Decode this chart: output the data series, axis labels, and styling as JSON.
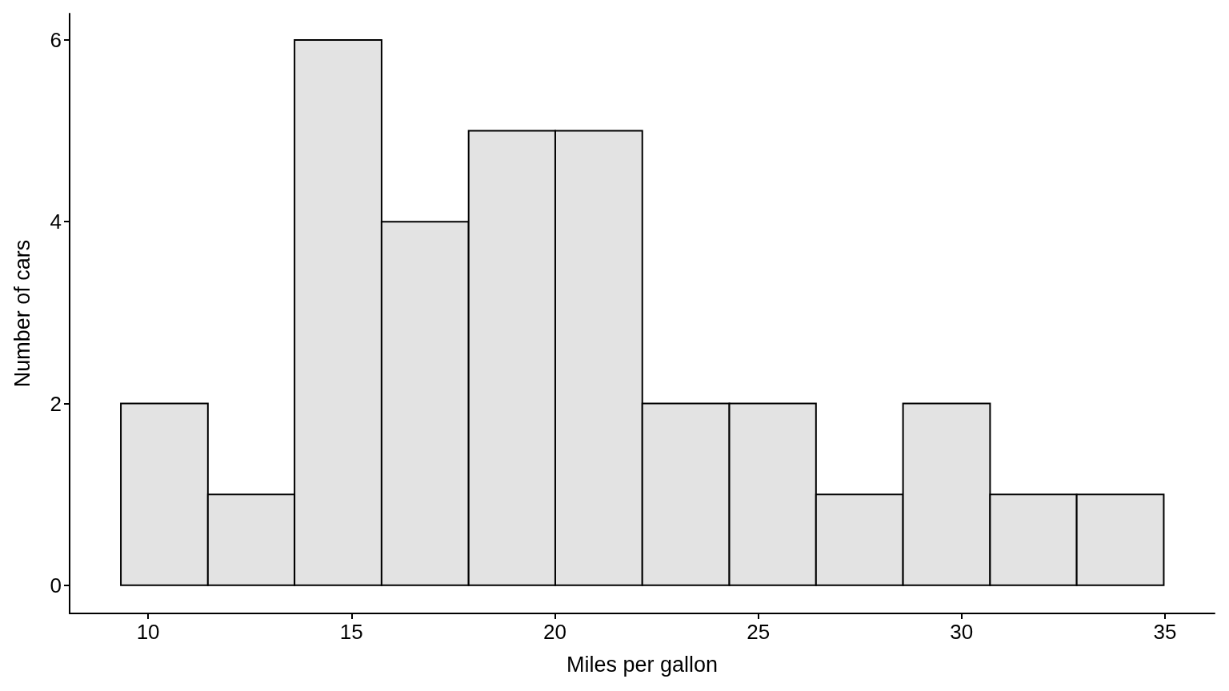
{
  "chart_data": {
    "type": "histogram",
    "xlabel": "Miles per gallon",
    "ylabel": "Number of cars",
    "bins": [
      9.33,
      11.47,
      13.6,
      15.74,
      17.88,
      20.01,
      22.15,
      24.29,
      26.42,
      28.56,
      30.7,
      32.83,
      34.97
    ],
    "values": [
      2,
      1,
      6,
      4,
      5,
      5,
      2,
      2,
      1,
      2,
      1,
      1
    ],
    "color": "#e3e3e3",
    "xlim": [
      8.07,
      36.22
    ],
    "xticks": [
      10,
      15,
      20,
      25,
      30,
      35
    ],
    "ylim": [
      -0.31,
      6.29
    ],
    "yticks": [
      0,
      2,
      4,
      6
    ],
    "grid": false
  }
}
